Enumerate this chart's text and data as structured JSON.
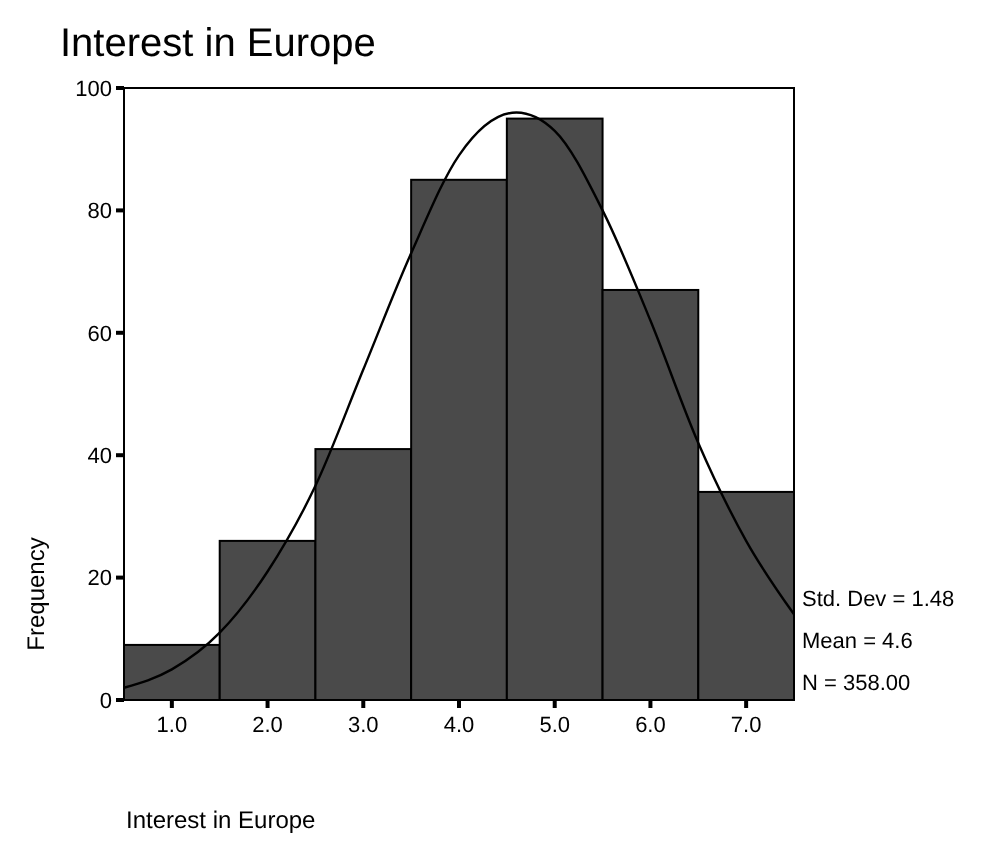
{
  "chart_data": {
    "type": "histogram",
    "title": "Interest in Europe",
    "xlabel": "Interest in Europe",
    "ylabel": "Frequency",
    "bins": [
      0.5,
      1.5,
      2.5,
      3.5,
      4.5,
      5.5,
      6.5,
      7.5
    ],
    "values": [
      9,
      26,
      41,
      85,
      95,
      67,
      34
    ],
    "color": "#4a4a4a",
    "series": [
      {
        "type": "line",
        "color": "#000000",
        "x": [
          0.5,
          1,
          1.5,
          2,
          2.5,
          3,
          3.5,
          4,
          4.6,
          5,
          5.5,
          6,
          6.5,
          7,
          7.5
        ],
        "values": [
          2,
          5,
          11,
          21,
          35,
          54,
          73,
          89,
          96,
          93,
          80,
          62,
          42,
          26,
          14
        ]
      }
    ],
    "xlim": [
      0.5,
      7.5
    ],
    "xticks": [
      {
        "value": 1,
        "label": "1.0"
      },
      {
        "value": 2,
        "label": "2.0"
      },
      {
        "value": 3,
        "label": "3.0"
      },
      {
        "value": 4,
        "label": "4.0"
      },
      {
        "value": 5,
        "label": "5.0"
      },
      {
        "value": 6,
        "label": "6.0"
      },
      {
        "value": 7,
        "label": "7.0"
      }
    ],
    "ylim": [
      0,
      100
    ],
    "yticks": [
      0,
      20,
      40,
      60,
      80,
      100
    ],
    "marker": "none",
    "line_style": "solid",
    "annotations": [
      "Std. Dev = 1.48",
      "Mean = 4.6",
      "N = 358.00"
    ]
  }
}
